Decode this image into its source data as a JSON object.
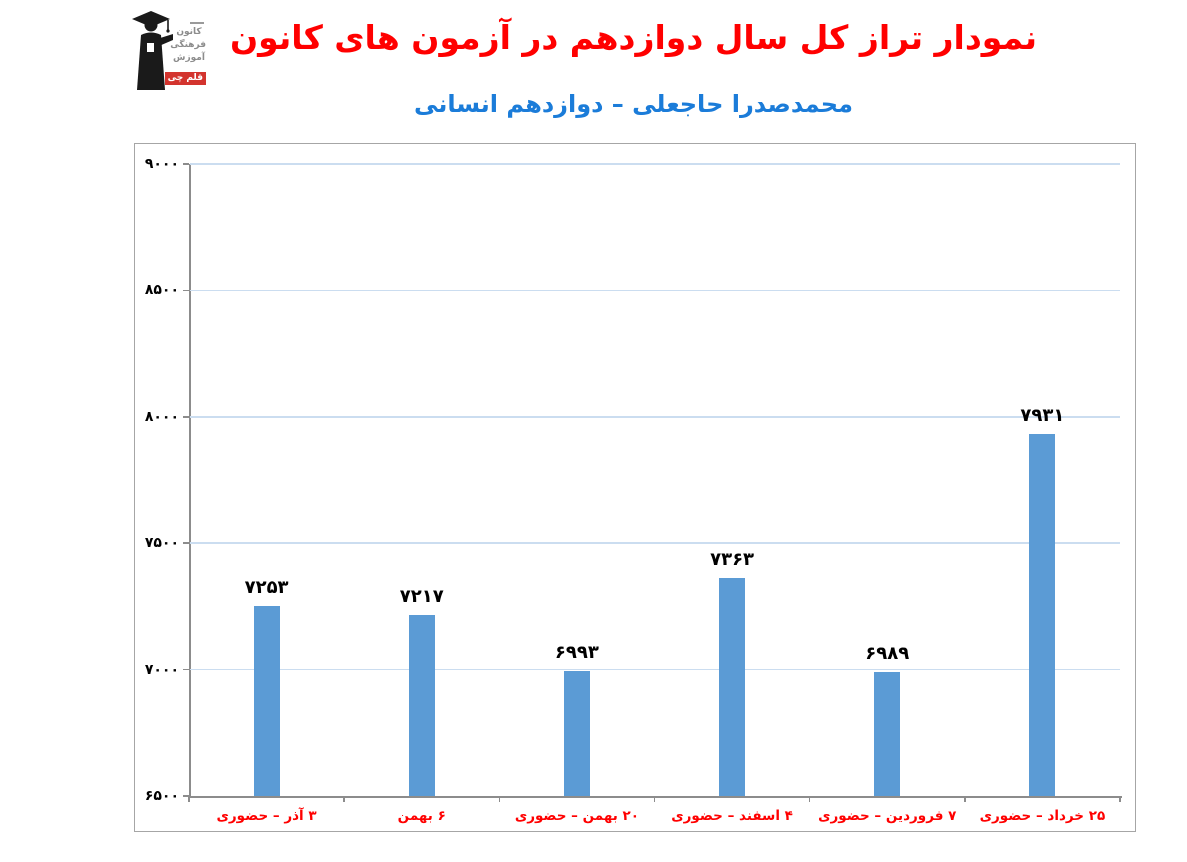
{
  "header": {
    "title": "نمودار تراز کل سال دوازدهم در آزمون های کانون",
    "subtitle": "محمدصدرا حاجعلی – دوازدهم انسانی",
    "title_color": "#FF0000",
    "subtitle_color": "#1B7CD9"
  },
  "logo": {
    "name": "کانون فرهنگی آموزش قلم چی",
    "text_lines": [
      "کانون",
      "فرهنگی",
      "آموزش"
    ],
    "badge_label": "قلم چی",
    "badge_color": "#D3342E",
    "figure_color": "#1A1A1A",
    "figure": "graduate-silhouette"
  },
  "chart_data": {
    "type": "bar",
    "title": "نمودار تراز کل سال دوازدهم در آزمون های کانون",
    "subtitle": "محمدصدرا حاجعلی – دوازدهم انسانی",
    "categories": [
      "۳ آذر – حضوری",
      "۶ بهمن",
      "۲۰ بهمن – حضوری",
      "۴ اسفند – حضوری",
      "۷ فروردین – حضوری",
      "۲۵ خرداد – حضوری"
    ],
    "values": [
      7253,
      7217,
      6993,
      7363,
      6989,
      7931
    ],
    "value_labels": [
      "۷۲۵۳",
      "۷۲۱۷",
      "۶۹۹۳",
      "۷۳۶۳",
      "۶۹۸۹",
      "۷۹۳۱"
    ],
    "xlabel": "",
    "ylabel": "",
    "ylim": [
      6500,
      9000
    ],
    "yticks": [
      6500,
      7000,
      7500,
      8000,
      8500,
      9000
    ],
    "ytick_labels": [
      "۶۵۰۰",
      "۷۰۰۰",
      "۷۵۰۰",
      "۸۰۰۰",
      "۸۵۰۰",
      "۹۰۰۰"
    ],
    "grid": "horizontal",
    "legend": "none",
    "direction": "rtl",
    "bar_color": "#5B9BD5",
    "gridline_color": "#CBDDF0",
    "axis_color": "#8C8C8C",
    "value_label_color": "#000000",
    "category_label_color": "#FF0000"
  }
}
